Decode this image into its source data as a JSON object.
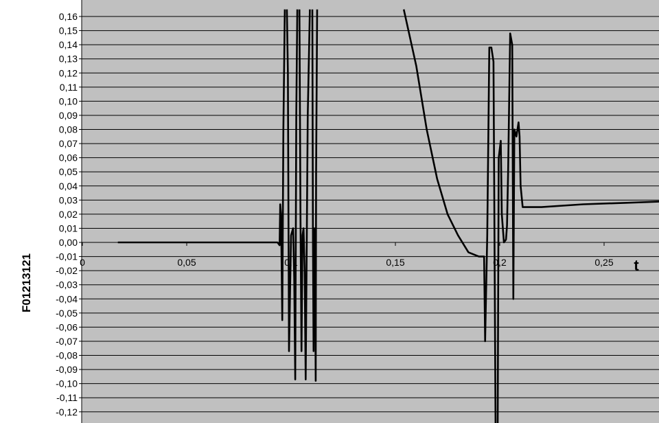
{
  "chart_data": {
    "type": "line",
    "title": "",
    "xlabel": "t",
    "ylabel": "F01213121",
    "xlim": [
      0,
      0.285
    ],
    "ylim": [
      -0.13,
      0.165
    ],
    "grid": true,
    "legend": "none",
    "colors": {
      "plot_background": "#c0c0c0",
      "gridline": "#000000",
      "line": "#000000",
      "page": "#ffffff"
    },
    "y_ticks": [
      "0,16",
      "0,15",
      "0,14",
      "0,13",
      "0,12",
      "0,11",
      "0,10",
      "0,09",
      "0,08",
      "0,07",
      "0,06",
      "0,05",
      "0,04",
      "0,03",
      "0,02",
      "0,01",
      "0,00",
      "-0,01",
      "-0,02",
      "-0,03",
      "-0,04",
      "-0,05",
      "-0,06",
      "-0,07",
      "-0,08",
      "-0,09",
      "-0,10",
      "-0,11",
      "-0,12"
    ],
    "x_ticks": [
      "0",
      "0,05",
      "0,1",
      "0,15",
      "0,2",
      "0,25"
    ],
    "series": [
      {
        "x": [
          0.017,
          0.05,
          0.09,
          0.0935,
          0.0945,
          0.0948,
          0.0952,
          0.0958,
          0.0963,
          0.097,
          0.0975,
          0.098,
          0.0985,
          0.099,
          0.1,
          0.101,
          0.1015,
          0.102,
          0.1025,
          0.103,
          0.1035,
          0.104,
          0.1045,
          0.105,
          0.1055,
          0.106,
          0.1065,
          0.107,
          0.108,
          0.109,
          0.11,
          0.1102,
          0.1105,
          0.1108,
          0.111,
          0.1112,
          0.1115,
          0.1118,
          0.112,
          0.1125,
          0.1128,
          0.113,
          null,
          0.154,
          0.16,
          0.165,
          0.17,
          0.175,
          0.18,
          0.185,
          0.19,
          0.1925,
          0.193,
          0.194,
          0.195,
          0.196,
          0.197,
          0.198,
          0.199,
          0.1995,
          0.2005,
          0.201,
          0.202,
          0.203,
          0.2035,
          0.204,
          0.205,
          0.206,
          0.2065,
          0.207,
          0.208,
          0.209,
          0.2095,
          0.21,
          0.211,
          0.2115,
          0.212,
          0.2125,
          0.213,
          0.2135,
          0.2145,
          0.2155,
          0.2165,
          0.2175,
          0.22,
          0.24,
          0.26,
          0.278
        ],
        "y": [
          0.0,
          0.0,
          0.0,
          0.0,
          -0.002,
          0.027,
          0.02,
          -0.055,
          0.08,
          0.165,
          null,
          0.165,
          0.12,
          -0.077,
          0.005,
          0.01,
          -0.025,
          -0.097,
          0.09,
          0.165,
          null,
          0.165,
          0.02,
          -0.077,
          0.005,
          0.01,
          -0.02,
          -0.097,
          0.09,
          0.165,
          null,
          0.165,
          0.0,
          -0.077,
          0.0,
          0.01,
          -0.03,
          -0.098,
          0.05,
          0.165,
          null,
          null,
          null,
          0.165,
          0.125,
          0.08,
          0.045,
          0.02,
          0.005,
          -0.007,
          -0.01,
          -0.01,
          -0.07,
          0.005,
          0.138,
          0.138,
          0.128,
          -0.13,
          -0.13,
          0.06,
          0.072,
          0.02,
          0.0,
          0.002,
          0.012,
          0.05,
          0.148,
          0.14,
          -0.04,
          0.08,
          0.075,
          0.085,
          0.075,
          0.04,
          0.025,
          0.025,
          0.025,
          0.025,
          0.025,
          0.025,
          0.025,
          0.025,
          0.025,
          0.025,
          0.025,
          0.027,
          0.028,
          0.029
        ]
      }
    ]
  }
}
